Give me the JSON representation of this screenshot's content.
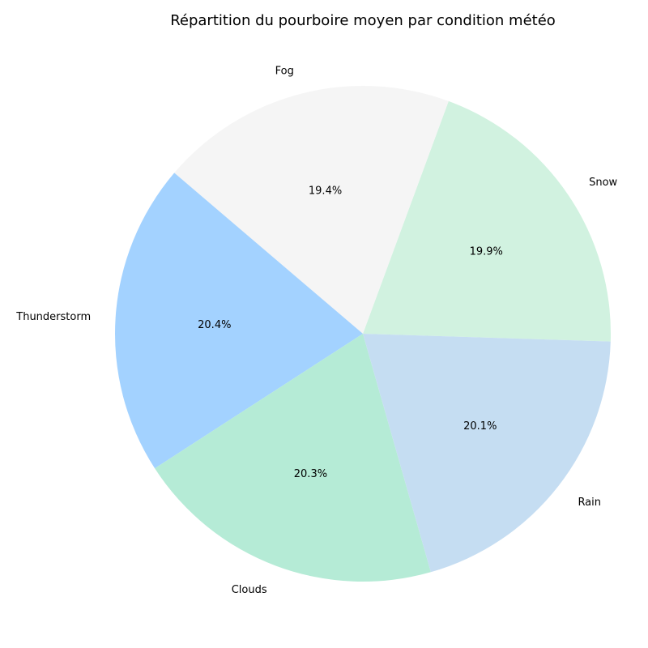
{
  "chart_data": {
    "type": "pie",
    "title": "Répartition du pourboire moyen par condition météo",
    "slices": [
      {
        "label": "Snow",
        "value": 19.9,
        "pct_label": "19.9%",
        "color": "#d1f2e0"
      },
      {
        "label": "Fog",
        "value": 19.4,
        "pct_label": "19.4%",
        "color": "#f5f5f5"
      },
      {
        "label": "Thunderstorm",
        "value": 20.4,
        "pct_label": "20.4%",
        "color": "#a3d2ff"
      },
      {
        "label": "Clouds",
        "value": 20.3,
        "pct_label": "20.3%",
        "color": "#b5ebd6"
      },
      {
        "label": "Rain",
        "value": 20.1,
        "pct_label": "20.1%",
        "color": "#c5ddf2"
      }
    ],
    "start_angle_deg": -1.8,
    "direction": "counterclockwise"
  }
}
